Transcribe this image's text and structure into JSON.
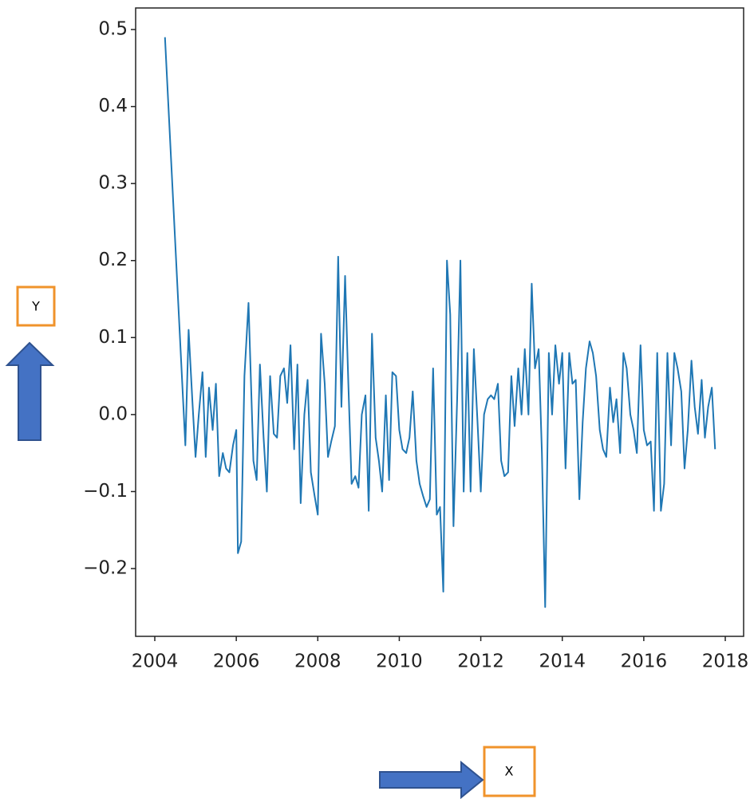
{
  "chart_data": {
    "type": "line",
    "x_label": "X",
    "y_label": "Y",
    "color": "#1f77b4",
    "x": [
      2004.25,
      2004.75,
      2004.83,
      2004.92,
      2005.0,
      2005.08,
      2005.17,
      2005.25,
      2005.33,
      2005.42,
      2005.5,
      2005.58,
      2005.67,
      2005.75,
      2005.83,
      2005.92,
      2006.0,
      2006.04,
      2006.12,
      2006.2,
      2006.3,
      2006.42,
      2006.5,
      2006.58,
      2006.67,
      2006.75,
      2006.83,
      2006.92,
      2007.0,
      2007.08,
      2007.17,
      2007.25,
      2007.33,
      2007.42,
      2007.5,
      2007.58,
      2007.67,
      2007.75,
      2007.83,
      2007.92,
      2008.0,
      2008.08,
      2008.17,
      2008.25,
      2008.33,
      2008.42,
      2008.5,
      2008.58,
      2008.67,
      2008.75,
      2008.83,
      2008.92,
      2009.0,
      2009.08,
      2009.17,
      2009.25,
      2009.33,
      2009.42,
      2009.5,
      2009.58,
      2009.67,
      2009.75,
      2009.83,
      2009.92,
      2010.0,
      2010.08,
      2010.17,
      2010.25,
      2010.33,
      2010.42,
      2010.5,
      2010.58,
      2010.67,
      2010.75,
      2010.83,
      2010.92,
      2011.0,
      2011.08,
      2011.17,
      2011.25,
      2011.33,
      2011.42,
      2011.5,
      2011.58,
      2011.67,
      2011.75,
      2011.83,
      2011.92,
      2012.0,
      2012.08,
      2012.17,
      2012.25,
      2012.33,
      2012.42,
      2012.5,
      2012.58,
      2012.67,
      2012.75,
      2012.83,
      2012.92,
      2013.0,
      2013.08,
      2013.17,
      2013.25,
      2013.33,
      2013.42,
      2013.5,
      2013.58,
      2013.67,
      2013.75,
      2013.83,
      2013.92,
      2014.0,
      2014.08,
      2014.17,
      2014.25,
      2014.33,
      2014.42,
      2014.5,
      2014.58,
      2014.67,
      2014.75,
      2014.83,
      2014.92,
      2015.0,
      2015.08,
      2015.17,
      2015.25,
      2015.33,
      2015.42,
      2015.5,
      2015.58,
      2015.67,
      2015.75,
      2015.83,
      2015.92,
      2016.0,
      2016.08,
      2016.17,
      2016.25,
      2016.33,
      2016.42,
      2016.5,
      2016.58,
      2016.67,
      2016.75,
      2016.83,
      2016.92,
      2017.0,
      2017.08,
      2017.17,
      2017.25,
      2017.33,
      2017.42,
      2017.5,
      2017.58,
      2017.67,
      2017.75
    ],
    "values": [
      0.49,
      -0.04,
      0.11,
      0.02,
      -0.055,
      0.0,
      0.055,
      -0.055,
      0.035,
      -0.02,
      0.04,
      -0.08,
      -0.05,
      -0.07,
      -0.075,
      -0.04,
      -0.02,
      -0.18,
      -0.165,
      0.05,
      0.145,
      -0.06,
      -0.085,
      0.065,
      -0.03,
      -0.1,
      0.05,
      -0.025,
      -0.03,
      0.05,
      0.06,
      0.015,
      0.09,
      -0.045,
      0.065,
      -0.115,
      0.0,
      0.045,
      -0.075,
      -0.105,
      -0.13,
      0.105,
      0.04,
      -0.055,
      -0.035,
      -0.015,
      0.205,
      0.01,
      0.18,
      0.04,
      -0.09,
      -0.08,
      -0.095,
      0.0,
      0.025,
      -0.125,
      0.105,
      -0.03,
      -0.06,
      -0.1,
      0.025,
      -0.085,
      0.055,
      0.05,
      -0.02,
      -0.045,
      -0.05,
      -0.03,
      0.03,
      -0.06,
      -0.09,
      -0.105,
      -0.12,
      -0.11,
      0.06,
      -0.13,
      -0.12,
      -0.23,
      0.2,
      0.13,
      -0.145,
      0.02,
      0.2,
      -0.1,
      0.08,
      -0.1,
      0.085,
      -0.01,
      -0.1,
      0.0,
      0.02,
      0.025,
      0.02,
      0.04,
      -0.06,
      -0.08,
      -0.075,
      0.05,
      -0.015,
      0.06,
      0.0,
      0.085,
      0.0,
      0.17,
      0.06,
      0.085,
      -0.05,
      -0.25,
      0.08,
      0.0,
      0.09,
      0.04,
      0.08,
      -0.07,
      0.08,
      0.04,
      0.045,
      -0.11,
      -0.01,
      0.06,
      0.095,
      0.08,
      0.05,
      -0.02,
      -0.045,
      -0.055,
      0.035,
      -0.01,
      0.02,
      -0.05,
      0.08,
      0.06,
      0.0,
      -0.02,
      -0.05,
      0.09,
      -0.02,
      -0.04,
      -0.035,
      -0.125,
      0.08,
      -0.125,
      -0.09,
      0.08,
      -0.04,
      0.08,
      0.06,
      0.03,
      -0.07,
      -0.02,
      0.07,
      0.01,
      -0.025,
      0.045,
      -0.03,
      0.01,
      0.035,
      -0.045
    ],
    "xlim": [
      2003.53,
      2018.45
    ],
    "ylim": [
      -0.288,
      0.528
    ],
    "xticks": [
      2004,
      2006,
      2008,
      2010,
      2012,
      2014,
      2016,
      2018
    ],
    "yticks": [
      {
        "value": -0.2,
        "label": "−0.2"
      },
      {
        "value": -0.1,
        "label": "−0.1"
      },
      {
        "value": 0,
        "label": "0.0"
      },
      0.1,
      0.2,
      0.3,
      0.4,
      0.5
    ]
  }
}
